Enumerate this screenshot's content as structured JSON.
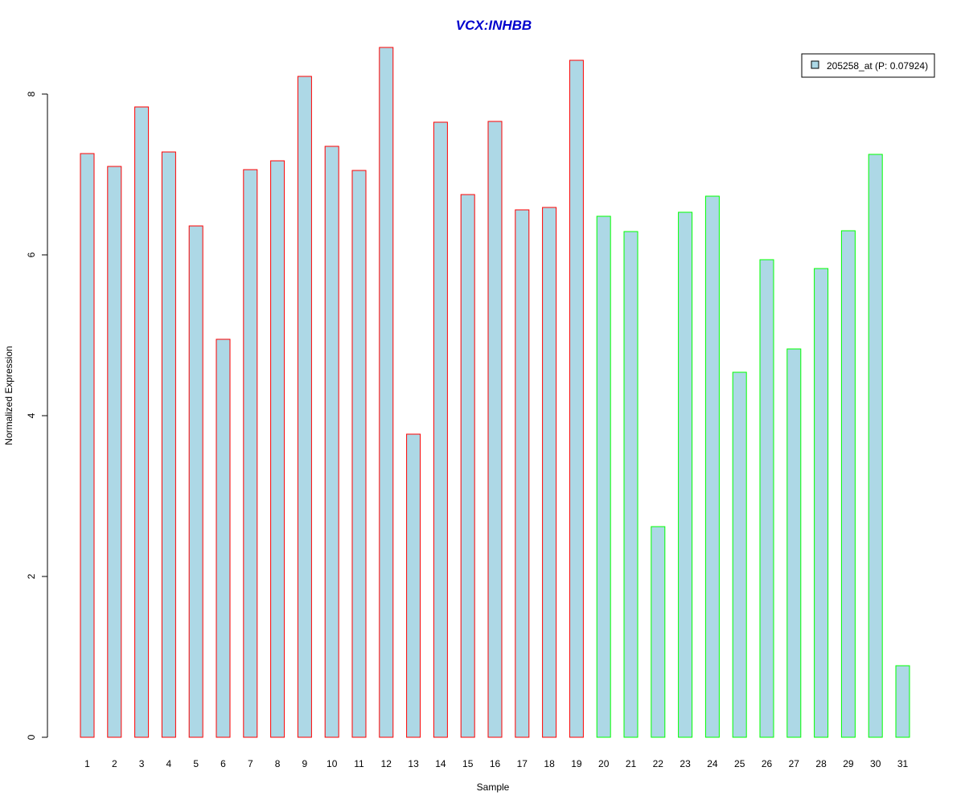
{
  "chart_data": {
    "type": "bar",
    "title": "VCX:INHBB",
    "xlabel": "Sample",
    "ylabel": "Normalized Expression",
    "categories": [
      "1",
      "2",
      "3",
      "4",
      "5",
      "6",
      "7",
      "8",
      "9",
      "10",
      "11",
      "12",
      "13",
      "14",
      "15",
      "16",
      "17",
      "18",
      "19",
      "20",
      "21",
      "22",
      "23",
      "24",
      "25",
      "26",
      "27",
      "28",
      "29",
      "30",
      "31"
    ],
    "values": [
      7.26,
      7.1,
      7.84,
      7.28,
      6.36,
      4.95,
      7.06,
      7.17,
      8.22,
      7.35,
      7.05,
      8.58,
      3.77,
      7.65,
      6.75,
      7.66,
      6.56,
      6.59,
      8.42,
      6.48,
      6.29,
      2.62,
      6.53,
      6.73,
      4.54,
      5.94,
      4.83,
      5.83,
      6.3,
      7.25,
      0.89
    ],
    "groups": [
      1,
      1,
      1,
      1,
      1,
      1,
      1,
      1,
      1,
      1,
      1,
      1,
      1,
      1,
      1,
      1,
      1,
      1,
      1,
      2,
      2,
      2,
      2,
      2,
      2,
      2,
      2,
      2,
      2,
      2,
      2
    ],
    "yticks": [
      0,
      2,
      4,
      6,
      8
    ],
    "ylim": [
      0,
      8.6
    ],
    "legend": {
      "label": "205258_at (P: 0.07924)",
      "position": "top-right"
    },
    "colors": {
      "bar_fill": "#add8e6",
      "group1_border": "#ff0000",
      "group2_border": "#00ff00",
      "title": "#0000cd"
    }
  }
}
